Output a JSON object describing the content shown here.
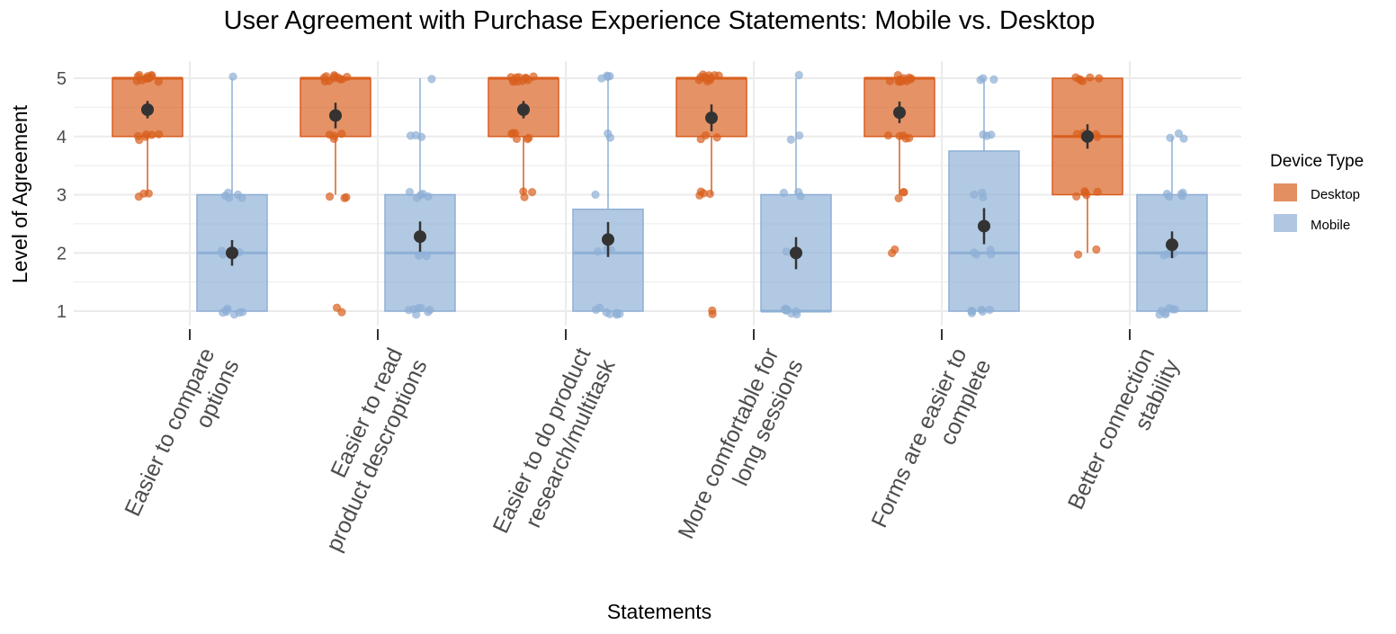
{
  "chart_data": {
    "type": "box",
    "title": "User Agreement with Purchase Experience Statements: Mobile vs. Desktop",
    "xlabel": "Statements",
    "ylabel": "Level of Agreement",
    "ylim": [
      1,
      5
    ],
    "yticks": [
      1,
      2,
      3,
      4,
      5
    ],
    "grid": true,
    "legend": {
      "title": "Device Type",
      "placement": "right",
      "entries": [
        "Desktop",
        "Mobile"
      ]
    },
    "colors": {
      "Desktop": "#d95f1e",
      "Mobile": "#8eafd6",
      "mean": "#333333"
    },
    "categories": [
      [
        "Easier to compare",
        "options"
      ],
      [
        "Easier to read",
        "product descroptions"
      ],
      [
        "Easier to do product",
        "research/multitask"
      ],
      [
        "More comfortable for",
        "long sessions"
      ],
      [
        "Forms are easier to",
        "complete"
      ],
      [
        "Better connection",
        "stability"
      ]
    ],
    "series": [
      {
        "name": "Desktop",
        "boxes": [
          {
            "q1": 4,
            "median": 5,
            "q3": 5,
            "whisker_low": 3,
            "whisker_high": 5,
            "mean": 4.46,
            "ci": [
              4.31,
              4.61
            ],
            "points": [
              5,
              5,
              5,
              5,
              5,
              5,
              5,
              5,
              5,
              5,
              5,
              5,
              4,
              4,
              4,
              4,
              4,
              4,
              3,
              3,
              3
            ]
          },
          {
            "q1": 4,
            "median": 5,
            "q3": 5,
            "whisker_low": 3,
            "whisker_high": 5,
            "mean": 4.36,
            "ci": [
              4.14,
              4.58
            ],
            "points": [
              5,
              5,
              5,
              5,
              5,
              5,
              5,
              5,
              5,
              5,
              5,
              4,
              4,
              4,
              4,
              3,
              3,
              3,
              1,
              1
            ]
          },
          {
            "q1": 4,
            "median": 5,
            "q3": 5,
            "whisker_low": 3,
            "whisker_high": 5,
            "mean": 4.46,
            "ci": [
              4.31,
              4.61
            ],
            "points": [
              5,
              5,
              5,
              5,
              5,
              5,
              5,
              5,
              5,
              5,
              5,
              4,
              4,
              4,
              4,
              4,
              4,
              3,
              3,
              3
            ]
          },
          {
            "q1": 4,
            "median": 5,
            "q3": 5,
            "whisker_low": 3,
            "whisker_high": 5,
            "mean": 4.32,
            "ci": [
              4.09,
              4.55
            ],
            "points": [
              5,
              5,
              5,
              5,
              5,
              5,
              5,
              5,
              5,
              5,
              5,
              4,
              4,
              4,
              3,
              3,
              3,
              3,
              1,
              1
            ]
          },
          {
            "q1": 4,
            "median": 5,
            "q3": 5,
            "whisker_low": 3,
            "whisker_high": 5,
            "mean": 4.41,
            "ci": [
              4.23,
              4.6
            ],
            "points": [
              5,
              5,
              5,
              5,
              5,
              5,
              5,
              5,
              5,
              5,
              5,
              4,
              4,
              4,
              4,
              4,
              3,
              3,
              3,
              2,
              2
            ]
          },
          {
            "q1": 3,
            "median": 4,
            "q3": 5,
            "whisker_low": 2,
            "whisker_high": 5,
            "mean": 4.0,
            "ci": [
              3.79,
              4.21
            ],
            "points": [
              5,
              5,
              5,
              5,
              5,
              5,
              4,
              4,
              4,
              4,
              4,
              4,
              4,
              3,
              3,
              3,
              3,
              3,
              2,
              2
            ]
          }
        ]
      },
      {
        "name": "Mobile",
        "boxes": [
          {
            "q1": 1,
            "median": 2,
            "q3": 3,
            "whisker_low": 1,
            "whisker_high": 5,
            "mean": 2.0,
            "ci": [
              1.78,
              2.22
            ],
            "points": [
              5,
              3,
              3,
              3,
              3,
              3,
              2,
              2,
              2,
              1,
              1,
              1,
              1,
              1,
              1,
              1
            ]
          },
          {
            "q1": 1,
            "median": 2,
            "q3": 3,
            "whisker_low": 1,
            "whisker_high": 5,
            "mean": 2.28,
            "ci": [
              2.02,
              2.54
            ],
            "points": [
              5,
              4,
              4,
              4,
              3,
              3,
              3,
              3,
              3,
              2,
              2,
              1,
              1,
              1,
              1,
              1,
              1,
              1
            ]
          },
          {
            "q1": 1,
            "median": 2,
            "q3": 2.75,
            "whisker_low": 1,
            "whisker_high": 5,
            "mean": 2.23,
            "ci": [
              1.93,
              2.53
            ],
            "points": [
              5,
              5,
              5,
              5,
              4,
              4,
              3,
              2,
              2,
              2,
              1,
              1,
              1,
              1,
              1,
              1,
              1
            ]
          },
          {
            "q1": 1,
            "median": 1,
            "q3": 3,
            "whisker_low": 1,
            "whisker_high": 5,
            "mean": 2.0,
            "ci": [
              1.72,
              2.27
            ],
            "points": [
              5,
              4,
              4,
              3,
              3,
              3,
              2,
              1,
              1,
              1,
              1,
              1,
              1,
              1,
              1,
              1
            ]
          },
          {
            "q1": 1,
            "median": 2,
            "q3": 3.75,
            "whisker_low": 1,
            "whisker_high": 5,
            "mean": 2.46,
            "ci": [
              2.15,
              2.77
            ],
            "points": [
              5,
              5,
              5,
              4,
              4,
              4,
              3,
              3,
              3,
              2,
              2,
              2,
              2,
              1,
              1,
              1,
              1,
              1,
              1
            ]
          },
          {
            "q1": 1,
            "median": 2,
            "q3": 3,
            "whisker_low": 1,
            "whisker_high": 4,
            "mean": 2.14,
            "ci": [
              1.91,
              2.37
            ],
            "points": [
              4,
              4,
              4,
              3,
              3,
              3,
              3,
              3,
              2,
              2,
              2,
              1,
              1,
              1,
              1,
              1,
              1,
              1
            ]
          }
        ]
      }
    ]
  }
}
